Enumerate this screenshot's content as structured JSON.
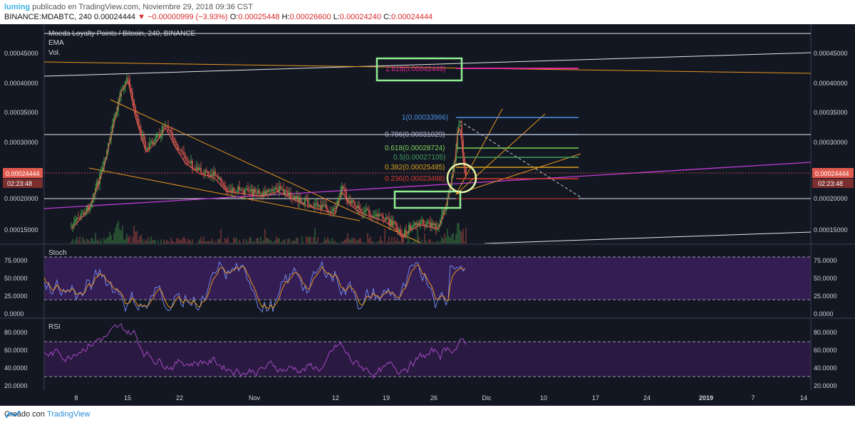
{
  "header": {
    "user": "luming",
    "published": " publicado en TradingView.com, Noviembre 29, 2018 09:36 CST",
    "symbol": "BINANCE:MDABTC, 240",
    "last": "0.00024444",
    "change": "−0.00000999 (−3.93%)",
    "o_label": "O:",
    "o": "0.00025448",
    "h_label": "H:",
    "h": "0.00026600",
    "l_label": "L:",
    "l": "0.00024240",
    "c_label": "C:",
    "c": "0.00024444"
  },
  "legend": {
    "title": "Moeda Loyalty Points / Bitcoin, 240, BINANCE",
    "ema": "EMA",
    "vol": "Vol.",
    "stoch": "Stoch",
    "rsi": "RSI"
  },
  "price_axis": {
    "ticks": [
      "0.00045000",
      "0.00040000",
      "0.00035000",
      "0.00030000",
      "0.00020000",
      "0.00015000"
    ],
    "current_price": "0.00024444",
    "countdown": "02:23:48"
  },
  "stoch_axis": {
    "ticks": [
      "75.0000",
      "50.0000",
      "25.0000",
      "0.0000"
    ]
  },
  "rsi_axis": {
    "ticks": [
      "80.0000",
      "60.0000",
      "40.0000",
      "20.0000"
    ]
  },
  "time_axis": {
    "ticks": [
      "8",
      "15",
      "22",
      "Nov",
      "12",
      "19",
      "26",
      "Dic",
      "10",
      "17",
      "24",
      "2019",
      "7",
      "14"
    ]
  },
  "fib_levels": [
    {
      "label": "1.618(0.00042446)",
      "color": "#e0289a"
    },
    {
      "label": "1(0.00033966)",
      "color": "#4a90e2"
    },
    {
      "label": "0.786(0.00031029)",
      "color": "#aab7d8"
    },
    {
      "label": "0.618(0.00028724)",
      "color": "#7fd35a"
    },
    {
      "label": "0.5(0.00027105)",
      "color": "#3f9e5d"
    },
    {
      "label": "0.382(0.00025485)",
      "color": "#d6a11a"
    },
    {
      "label": "0.236(0.00023488)",
      "color": "#d93a2e"
    }
  ],
  "footer": {
    "created_with": "Creado con",
    "brand": "TradingView"
  },
  "colors": {
    "bg": "#131722",
    "up": "#4caf50",
    "down": "#e05a4f",
    "highlight": "#90ee90",
    "purple": "#c03cd6",
    "orange": "#e8951e"
  }
}
